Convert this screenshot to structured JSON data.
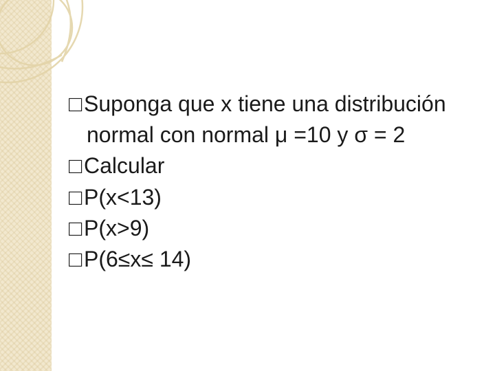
{
  "slide": {
    "background_color": "#ffffff",
    "sidebar_color": "#f2e8ce",
    "accent_stroke": "#e3d4a8",
    "text_color": "#1a1a1a",
    "font_size_pt": 24,
    "bullet_glyph": "□",
    "lines": [
      {
        "text_a": "Suponga que x tiene una distribución",
        "indent": 0
      },
      {
        "text_a": "normal con normal μ =10 y σ = 2",
        "indent": 1,
        "no_bullet": true
      },
      {
        "text_a": "Calcular",
        "indent": 0
      },
      {
        "text_a": "P(x<13)",
        "indent": 0
      },
      {
        "text_a": "P(x>9)",
        "indent": 0
      },
      {
        "text_a": "P(6≤x≤ 14)",
        "indent": 0
      }
    ]
  }
}
